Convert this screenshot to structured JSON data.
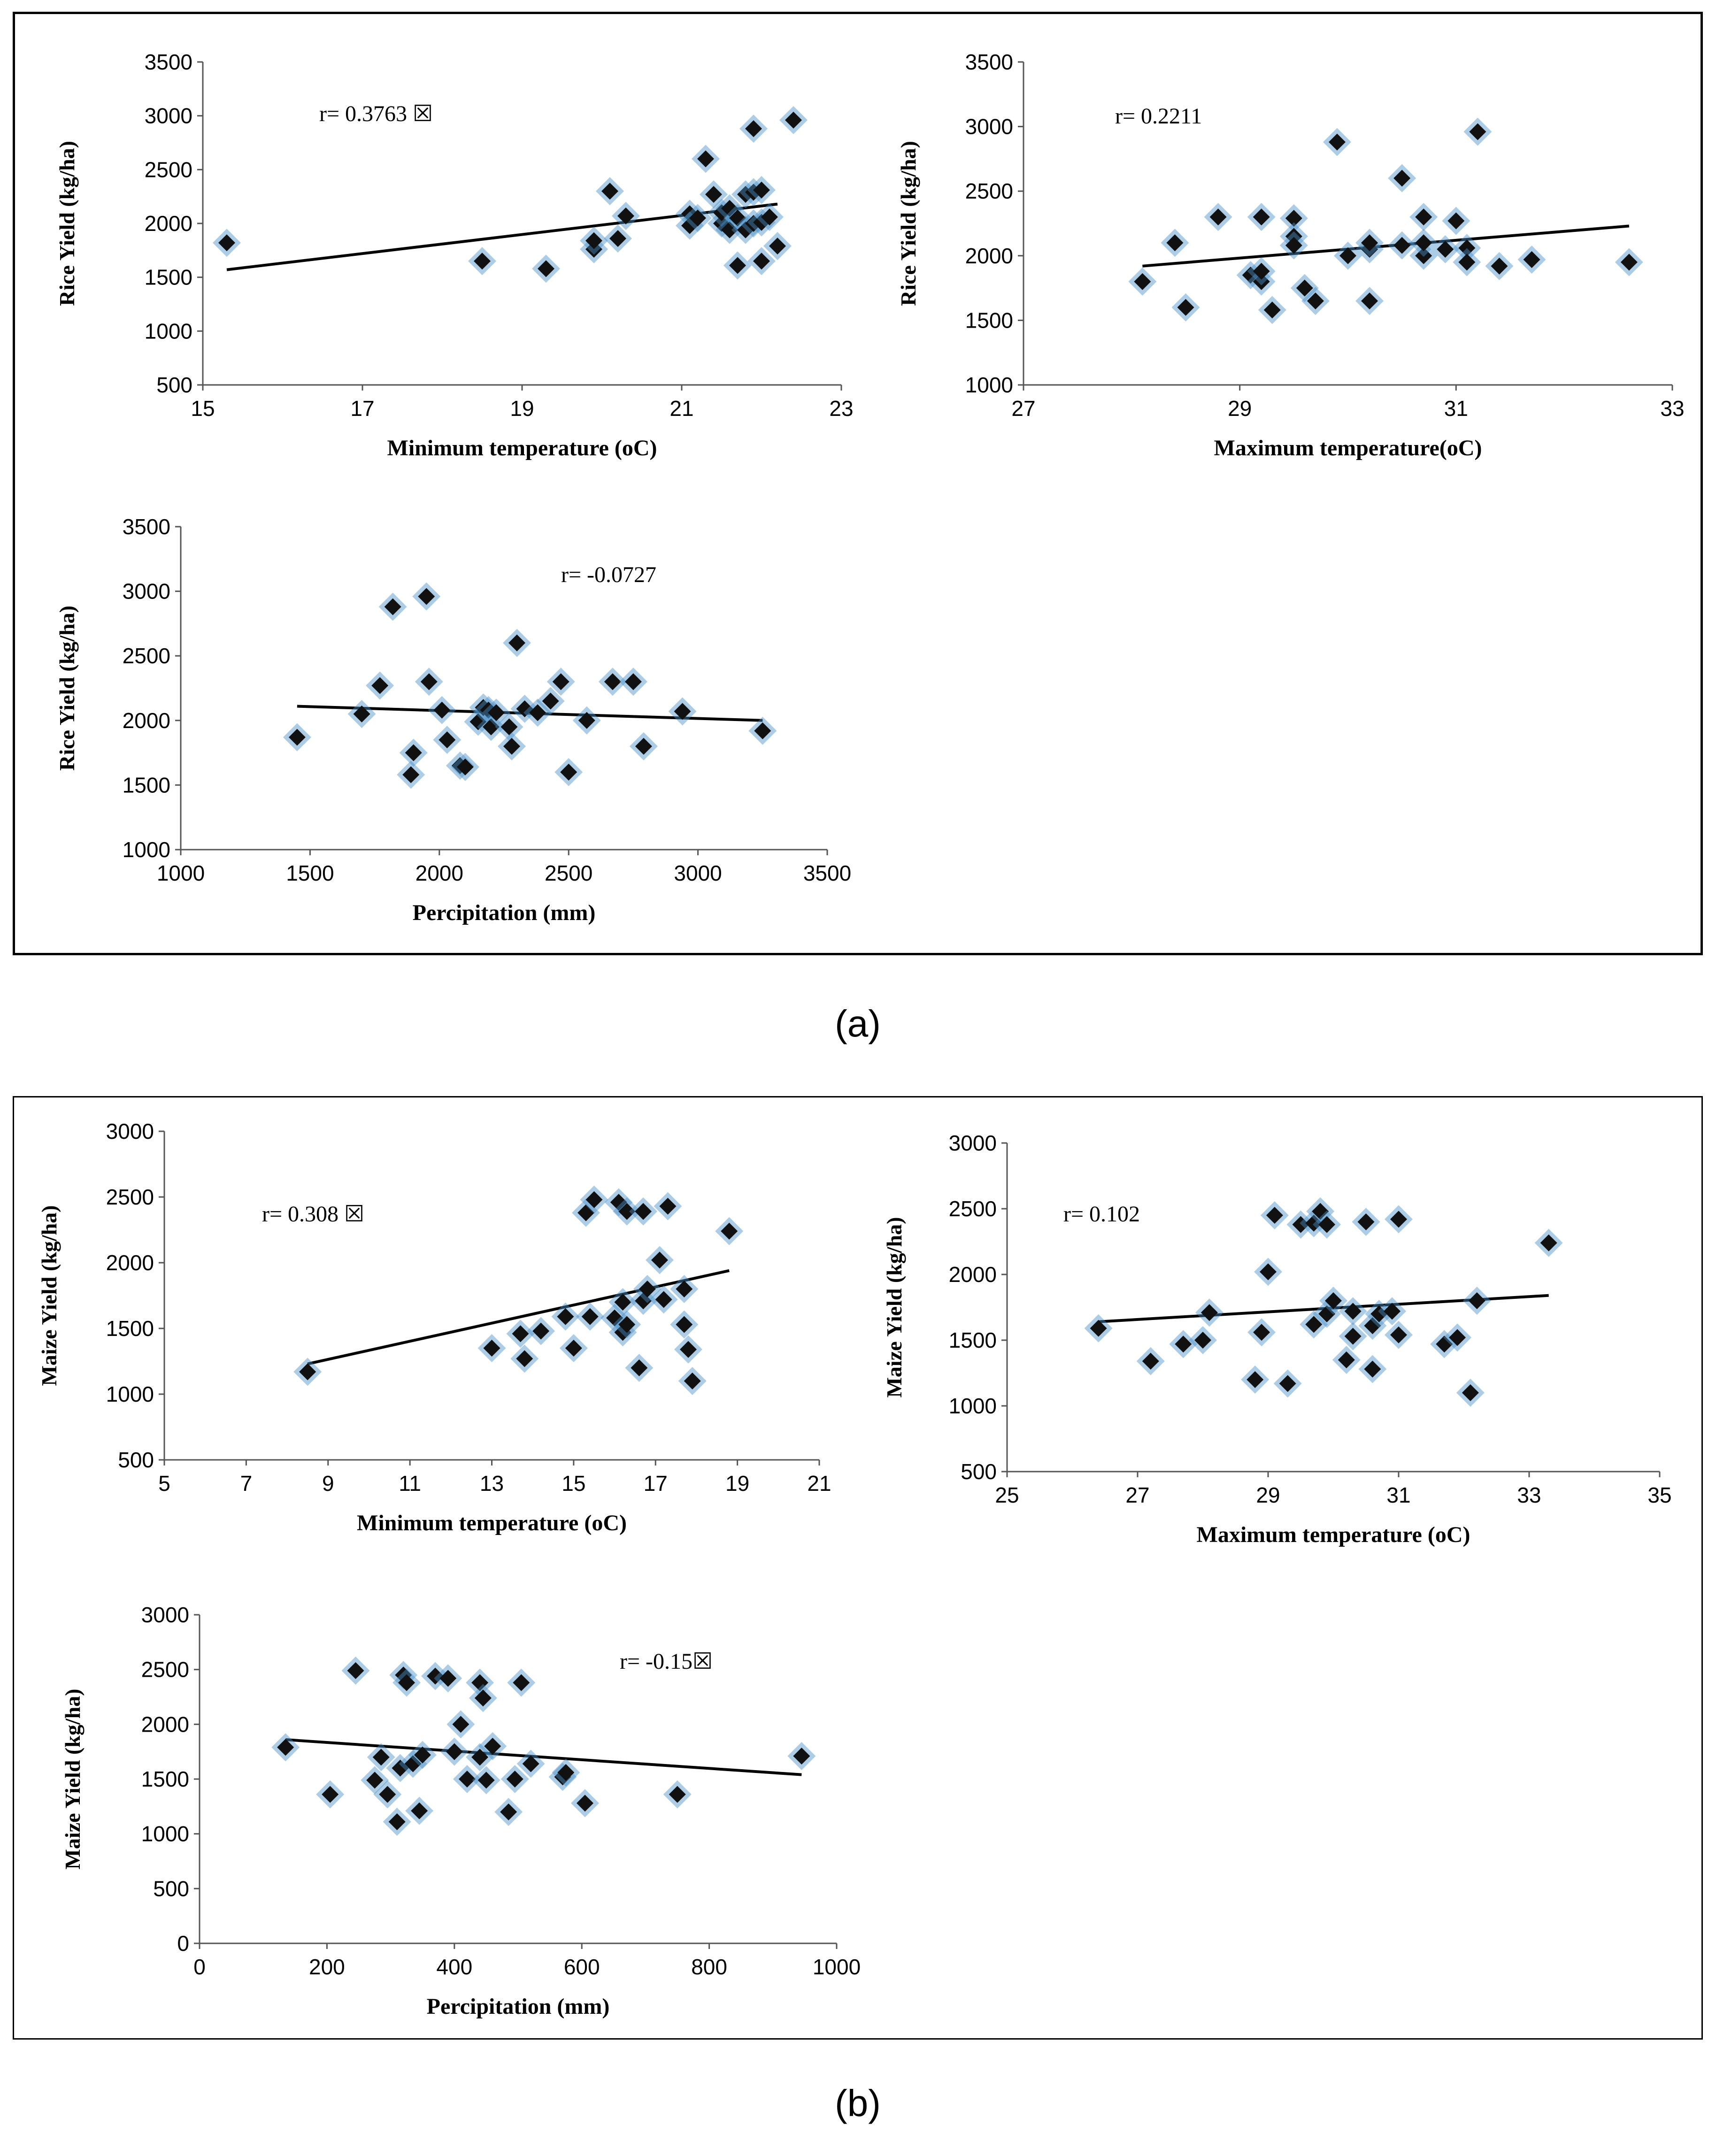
{
  "captions": {
    "a": "(a)",
    "b": "(b)"
  },
  "chart_data": [
    {
      "id": "rice-min",
      "type": "scatter",
      "xlabel": "Minimum temperature (oC)",
      "ylabel": "Rice Yield (kg/ha)",
      "annotation": "r= 0.3763 ☒",
      "xlim": [
        15,
        23
      ],
      "xticks": [
        15,
        17,
        19,
        21,
        23
      ],
      "ylim": [
        500,
        3500
      ],
      "yticks": [
        500,
        1000,
        1500,
        2000,
        2500,
        3000,
        3500
      ],
      "trend": [
        [
          15.3,
          1570
        ],
        [
          22.2,
          2180
        ]
      ],
      "points": [
        [
          15.3,
          1820
        ],
        [
          18.5,
          1650
        ],
        [
          19.3,
          1580
        ],
        [
          19.9,
          1760
        ],
        [
          19.9,
          1840
        ],
        [
          20.1,
          2300
        ],
        [
          20.2,
          1860
        ],
        [
          20.3,
          2070
        ],
        [
          21.1,
          2090
        ],
        [
          21.1,
          1980
        ],
        [
          21.2,
          2050
        ],
        [
          21.3,
          2600
        ],
        [
          21.4,
          2270
        ],
        [
          21.5,
          2000
        ],
        [
          21.5,
          2100
        ],
        [
          21.6,
          1940
        ],
        [
          21.6,
          2140
        ],
        [
          21.7,
          1610
        ],
        [
          21.7,
          2050
        ],
        [
          21.8,
          2270
        ],
        [
          21.8,
          1940
        ],
        [
          21.9,
          2880
        ],
        [
          21.9,
          2290
        ],
        [
          21.9,
          2000
        ],
        [
          22.0,
          2310
        ],
        [
          22.0,
          1650
        ],
        [
          22.0,
          2010
        ],
        [
          22.1,
          2060
        ],
        [
          22.2,
          1790
        ],
        [
          22.4,
          2960
        ]
      ]
    },
    {
      "id": "rice-max",
      "type": "scatter",
      "xlabel": "Maximum temperature(oC)",
      "ylabel": "Rice Yield  (kg/ha)",
      "annotation": "r= 0.2211",
      "xlim": [
        27,
        33
      ],
      "xticks": [
        27,
        29,
        31,
        33
      ],
      "ylim": [
        1000,
        3500
      ],
      "yticks": [
        1000,
        1500,
        2000,
        2500,
        3000,
        3500
      ],
      "trend": [
        [
          28.1,
          1920
        ],
        [
          32.6,
          2230
        ]
      ],
      "points": [
        [
          28.1,
          1800
        ],
        [
          28.4,
          2100
        ],
        [
          28.5,
          1600
        ],
        [
          28.8,
          2300
        ],
        [
          29.1,
          1850
        ],
        [
          29.2,
          1800
        ],
        [
          29.2,
          2300
        ],
        [
          29.2,
          1880
        ],
        [
          29.3,
          1580
        ],
        [
          29.5,
          2290
        ],
        [
          29.5,
          2150
        ],
        [
          29.5,
          2080
        ],
        [
          29.6,
          1750
        ],
        [
          29.7,
          1650
        ],
        [
          29.9,
          2880
        ],
        [
          30.0,
          2000
        ],
        [
          30.2,
          1650
        ],
        [
          30.2,
          2050
        ],
        [
          30.2,
          2100
        ],
        [
          30.5,
          2600
        ],
        [
          30.5,
          2080
        ],
        [
          30.7,
          2300
        ],
        [
          30.7,
          2000
        ],
        [
          30.7,
          2100
        ],
        [
          30.9,
          2050
        ],
        [
          31.0,
          2270
        ],
        [
          31.1,
          2060
        ],
        [
          31.1,
          1950
        ],
        [
          31.2,
          2960
        ],
        [
          31.4,
          1920
        ],
        [
          31.7,
          1970
        ],
        [
          32.6,
          1950
        ]
      ]
    },
    {
      "id": "rice-precip",
      "type": "scatter",
      "xlabel": "Percipitation (mm)",
      "ylabel": "Rice Yield (kg/ha)",
      "annotation": "r= -0.0727",
      "xlim": [
        1000,
        3500
      ],
      "xticks": [
        1000,
        1500,
        2000,
        2500,
        3000,
        3500
      ],
      "ylim": [
        1000,
        3500
      ],
      "yticks": [
        1000,
        1500,
        2000,
        2500,
        3000,
        3500
      ],
      "trend": [
        [
          1450,
          2110
        ],
        [
          3250,
          2000
        ]
      ],
      "points": [
        [
          1450,
          1870
        ],
        [
          1700,
          2050
        ],
        [
          1770,
          2270
        ],
        [
          1820,
          2880
        ],
        [
          1890,
          1580
        ],
        [
          1900,
          1750
        ],
        [
          1950,
          2960
        ],
        [
          1960,
          2300
        ],
        [
          2010,
          2080
        ],
        [
          2030,
          1850
        ],
        [
          2080,
          1650
        ],
        [
          2100,
          1640
        ],
        [
          2150,
          1990
        ],
        [
          2170,
          2100
        ],
        [
          2190,
          2080
        ],
        [
          2200,
          1950
        ],
        [
          2220,
          2060
        ],
        [
          2270,
          1950
        ],
        [
          2280,
          1800
        ],
        [
          2300,
          2600
        ],
        [
          2330,
          2090
        ],
        [
          2380,
          2060
        ],
        [
          2430,
          2150
        ],
        [
          2470,
          2300
        ],
        [
          2500,
          1600
        ],
        [
          2570,
          2000
        ],
        [
          2670,
          2300
        ],
        [
          2750,
          2300
        ],
        [
          2790,
          1800
        ],
        [
          2940,
          2070
        ],
        [
          3250,
          1920
        ]
      ]
    },
    {
      "id": "maize-min",
      "type": "scatter",
      "xlabel": "Minimum temperature (oC)",
      "ylabel": "Maize Yield (kg/ha)",
      "annotation": "r= 0.308 ☒",
      "xlim": [
        5,
        21
      ],
      "xticks": [
        5,
        7,
        9,
        11,
        13,
        15,
        17,
        19,
        21
      ],
      "ylim": [
        500,
        3000
      ],
      "yticks": [
        500,
        1000,
        1500,
        2000,
        2500,
        3000
      ],
      "trend": [
        [
          8.5,
          1230
        ],
        [
          18.8,
          1940
        ]
      ],
      "points": [
        [
          8.5,
          1170
        ],
        [
          13.0,
          1350
        ],
        [
          13.7,
          1460
        ],
        [
          13.8,
          1270
        ],
        [
          14.2,
          1480
        ],
        [
          14.8,
          1590
        ],
        [
          15.0,
          1350
        ],
        [
          15.3,
          2380
        ],
        [
          15.4,
          1590
        ],
        [
          15.5,
          2480
        ],
        [
          16.0,
          1580
        ],
        [
          16.1,
          2460
        ],
        [
          16.2,
          1470
        ],
        [
          16.2,
          1700
        ],
        [
          16.3,
          1530
        ],
        [
          16.3,
          2390
        ],
        [
          16.6,
          1200
        ],
        [
          16.7,
          1710
        ],
        [
          16.7,
          2390
        ],
        [
          16.8,
          1800
        ],
        [
          17.1,
          2020
        ],
        [
          17.2,
          1720
        ],
        [
          17.3,
          2430
        ],
        [
          17.7,
          1800
        ],
        [
          17.7,
          1530
        ],
        [
          17.8,
          1340
        ],
        [
          17.9,
          1100
        ],
        [
          18.8,
          2240
        ]
      ]
    },
    {
      "id": "maize-max",
      "type": "scatter",
      "xlabel": "Maximum temperature (oC)",
      "ylabel": "Maize Yield (kg/ha)",
      "annotation": "r= 0.102",
      "xlim": [
        25,
        35
      ],
      "xticks": [
        25,
        27,
        29,
        31,
        33,
        35
      ],
      "ylim": [
        500,
        3000
      ],
      "yticks": [
        500,
        1000,
        1500,
        2000,
        2500,
        3000
      ],
      "trend": [
        [
          26.4,
          1640
        ],
        [
          33.3,
          1840
        ]
      ],
      "points": [
        [
          26.4,
          1590
        ],
        [
          27.2,
          1340
        ],
        [
          27.7,
          1470
        ],
        [
          28.0,
          1500
        ],
        [
          28.1,
          1710
        ],
        [
          28.8,
          1200
        ],
        [
          28.9,
          1560
        ],
        [
          29.0,
          2020
        ],
        [
          29.1,
          2450
        ],
        [
          29.3,
          1170
        ],
        [
          29.5,
          2380
        ],
        [
          29.7,
          2390
        ],
        [
          29.7,
          1620
        ],
        [
          29.8,
          2480
        ],
        [
          29.9,
          2380
        ],
        [
          29.9,
          1700
        ],
        [
          30.0,
          1800
        ],
        [
          30.2,
          1350
        ],
        [
          30.3,
          1530
        ],
        [
          30.3,
          1720
        ],
        [
          30.5,
          2400
        ],
        [
          30.6,
          1280
        ],
        [
          30.6,
          1610
        ],
        [
          30.7,
          1700
        ],
        [
          30.9,
          1720
        ],
        [
          31.0,
          2420
        ],
        [
          31.0,
          1540
        ],
        [
          31.7,
          1470
        ],
        [
          31.9,
          1520
        ],
        [
          32.1,
          1100
        ],
        [
          32.2,
          1800
        ],
        [
          33.3,
          2240
        ]
      ]
    },
    {
      "id": "maize-precip",
      "type": "scatter",
      "xlabel": "Percipitation (mm)",
      "ylabel": "Maize Yield (kg/ha)",
      "annotation": "r= -0.15☒",
      "xlim": [
        0,
        1000
      ],
      "xticks": [
        0,
        200,
        400,
        600,
        800,
        1000
      ],
      "ylim": [
        0,
        3000
      ],
      "yticks": [
        0,
        500,
        1000,
        1500,
        2000,
        2500,
        3000
      ],
      "trend": [
        [
          135,
          1860
        ],
        [
          945,
          1540
        ]
      ],
      "points": [
        [
          135,
          1790
        ],
        [
          205,
          1360
        ],
        [
          245,
          2490
        ],
        [
          275,
          1490
        ],
        [
          285,
          1700
        ],
        [
          295,
          1360
        ],
        [
          310,
          1110
        ],
        [
          315,
          1600
        ],
        [
          320,
          2450
        ],
        [
          325,
          2380
        ],
        [
          335,
          1640
        ],
        [
          345,
          1210
        ],
        [
          350,
          1720
        ],
        [
          370,
          2440
        ],
        [
          390,
          2420
        ],
        [
          400,
          1750
        ],
        [
          410,
          2000
        ],
        [
          420,
          1500
        ],
        [
          440,
          2380
        ],
        [
          440,
          1700
        ],
        [
          445,
          2240
        ],
        [
          450,
          1490
        ],
        [
          460,
          1800
        ],
        [
          485,
          1200
        ],
        [
          495,
          1500
        ],
        [
          505,
          2380
        ],
        [
          520,
          1640
        ],
        [
          570,
          1520
        ],
        [
          575,
          1560
        ],
        [
          605,
          1280
        ],
        [
          750,
          1360
        ],
        [
          945,
          1710
        ]
      ]
    }
  ]
}
